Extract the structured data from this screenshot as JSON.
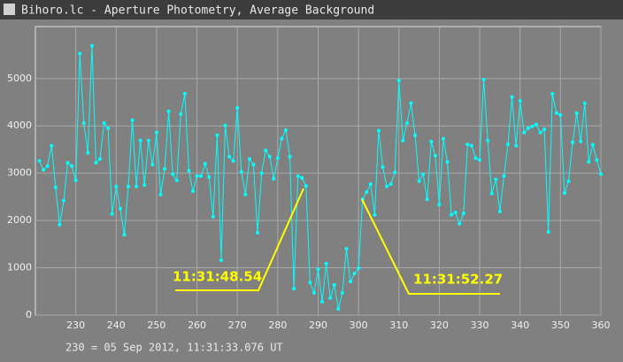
{
  "chart_data": {
    "type": "line",
    "title": "Bihoro.lc - Aperture Photometry, Average Background",
    "x_label": "230 = 05 Sep 2012, 11:31:33.076 UT",
    "color": "#00ffff",
    "grid": true,
    "xlim": [
      220,
      360
    ],
    "ylim": [
      0,
      6100
    ],
    "xticks": [
      230,
      240,
      250,
      260,
      270,
      280,
      290,
      300,
      310,
      320,
      330,
      340,
      350,
      360
    ],
    "yticks": [
      0,
      1000,
      2000,
      3000,
      4000,
      5000
    ],
    "x": [
      221,
      222,
      223,
      224,
      225,
      226,
      227,
      228,
      229,
      230,
      231,
      232,
      233,
      234,
      235,
      236,
      237,
      238,
      239,
      240,
      241,
      242,
      243,
      244,
      245,
      246,
      247,
      248,
      249,
      250,
      251,
      252,
      253,
      254,
      255,
      256,
      257,
      258,
      259,
      260,
      261,
      262,
      263,
      264,
      265,
      266,
      267,
      268,
      269,
      270,
      271,
      272,
      273,
      274,
      275,
      276,
      277,
      278,
      279,
      280,
      281,
      282,
      283,
      284,
      285,
      286,
      287,
      288,
      289,
      290,
      291,
      292,
      293,
      294,
      295,
      296,
      297,
      298,
      299,
      300,
      301,
      302,
      303,
      304,
      305,
      306,
      307,
      308,
      309,
      310,
      311,
      312,
      313,
      314,
      315,
      316,
      317,
      318,
      319,
      320,
      321,
      322,
      323,
      324,
      325,
      326,
      327,
      328,
      329,
      330,
      331,
      332,
      333,
      334,
      335,
      336,
      337,
      338,
      339,
      340,
      341,
      342,
      343,
      344,
      345,
      346,
      347,
      348,
      349,
      350,
      351,
      352,
      353,
      354,
      355,
      356,
      357,
      358,
      359,
      360
    ],
    "values": [
      3260,
      3070,
      3150,
      3580,
      2700,
      1910,
      2420,
      3220,
      3150,
      2850,
      5530,
      4060,
      3430,
      5690,
      3220,
      3300,
      4060,
      3950,
      2140,
      2720,
      2250,
      1700,
      2720,
      4120,
      2720,
      3690,
      2750,
      3690,
      3180,
      3860,
      2550,
      3090,
      4310,
      2980,
      2850,
      4250,
      4680,
      3050,
      2620,
      2940,
      2940,
      3200,
      2920,
      2080,
      3800,
      1160,
      4010,
      3350,
      3260,
      4380,
      3030,
      2550,
      3300,
      3180,
      1740,
      3000,
      3480,
      3350,
      2880,
      3320,
      3730,
      3910,
      3350,
      560,
      2940,
      2900,
      2730,
      690,
      470,
      970,
      280,
      1090,
      360,
      640,
      130,
      470,
      1400,
      710,
      880,
      990,
      2450,
      2600,
      2770,
      2120,
      3900,
      3130,
      2720,
      2770,
      3020,
      4960,
      3690,
      4060,
      4480,
      3800,
      2830,
      2980,
      2450,
      3670,
      3370,
      2340,
      3730,
      3240,
      2120,
      2170,
      1930,
      2150,
      3610,
      3580,
      3320,
      3280,
      4980,
      3690,
      2570,
      2870,
      2190,
      2940,
      3610,
      4610,
      3580,
      4530,
      3860,
      3950,
      3990,
      4030,
      3860,
      3930,
      1760,
      4680,
      4270,
      4230,
      2580,
      2830,
      3650,
      4270,
      3670,
      4480,
      3240,
      3600,
      3280,
      2980
    ],
    "annotations": [
      "11:31:48.54",
      "11:31:52.27"
    ]
  }
}
